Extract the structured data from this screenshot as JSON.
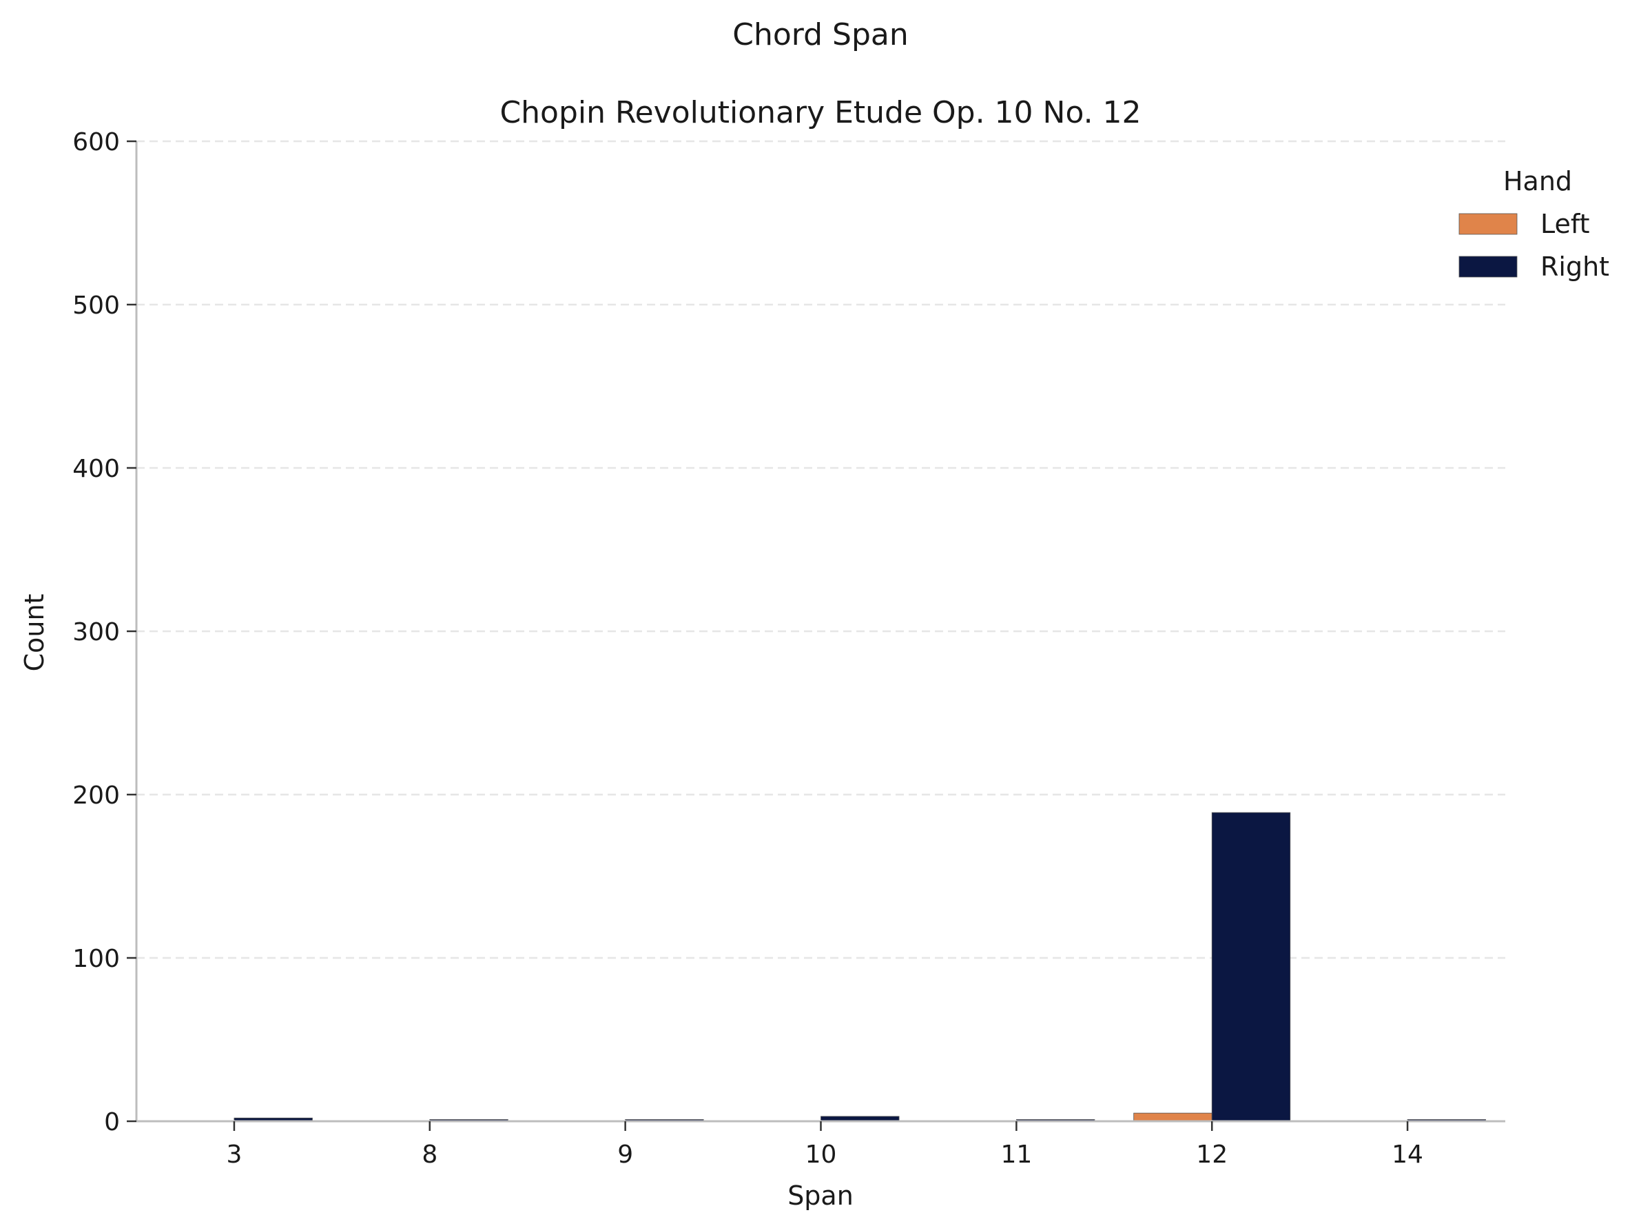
{
  "chart_data": {
    "type": "bar",
    "suptitle": "Chord Span",
    "title": "Chopin Revolutionary Etude Op. 10 No. 12",
    "xlabel": "Span",
    "ylabel": "Count",
    "categories": [
      "3",
      "8",
      "9",
      "10",
      "11",
      "12",
      "14"
    ],
    "ylim": [
      0,
      600
    ],
    "yticks": [
      0,
      100,
      200,
      300,
      400,
      500,
      600
    ],
    "grid": "y-dashed",
    "legend": {
      "title": "Hand",
      "placement": "top-right"
    },
    "series": [
      {
        "name": "Left",
        "color": "#e0844a",
        "values": [
          0,
          0,
          0,
          0,
          0,
          5,
          0
        ]
      },
      {
        "name": "Right",
        "color": "#0b1742",
        "values": [
          2,
          1,
          1,
          3,
          1,
          189,
          1
        ]
      }
    ]
  }
}
